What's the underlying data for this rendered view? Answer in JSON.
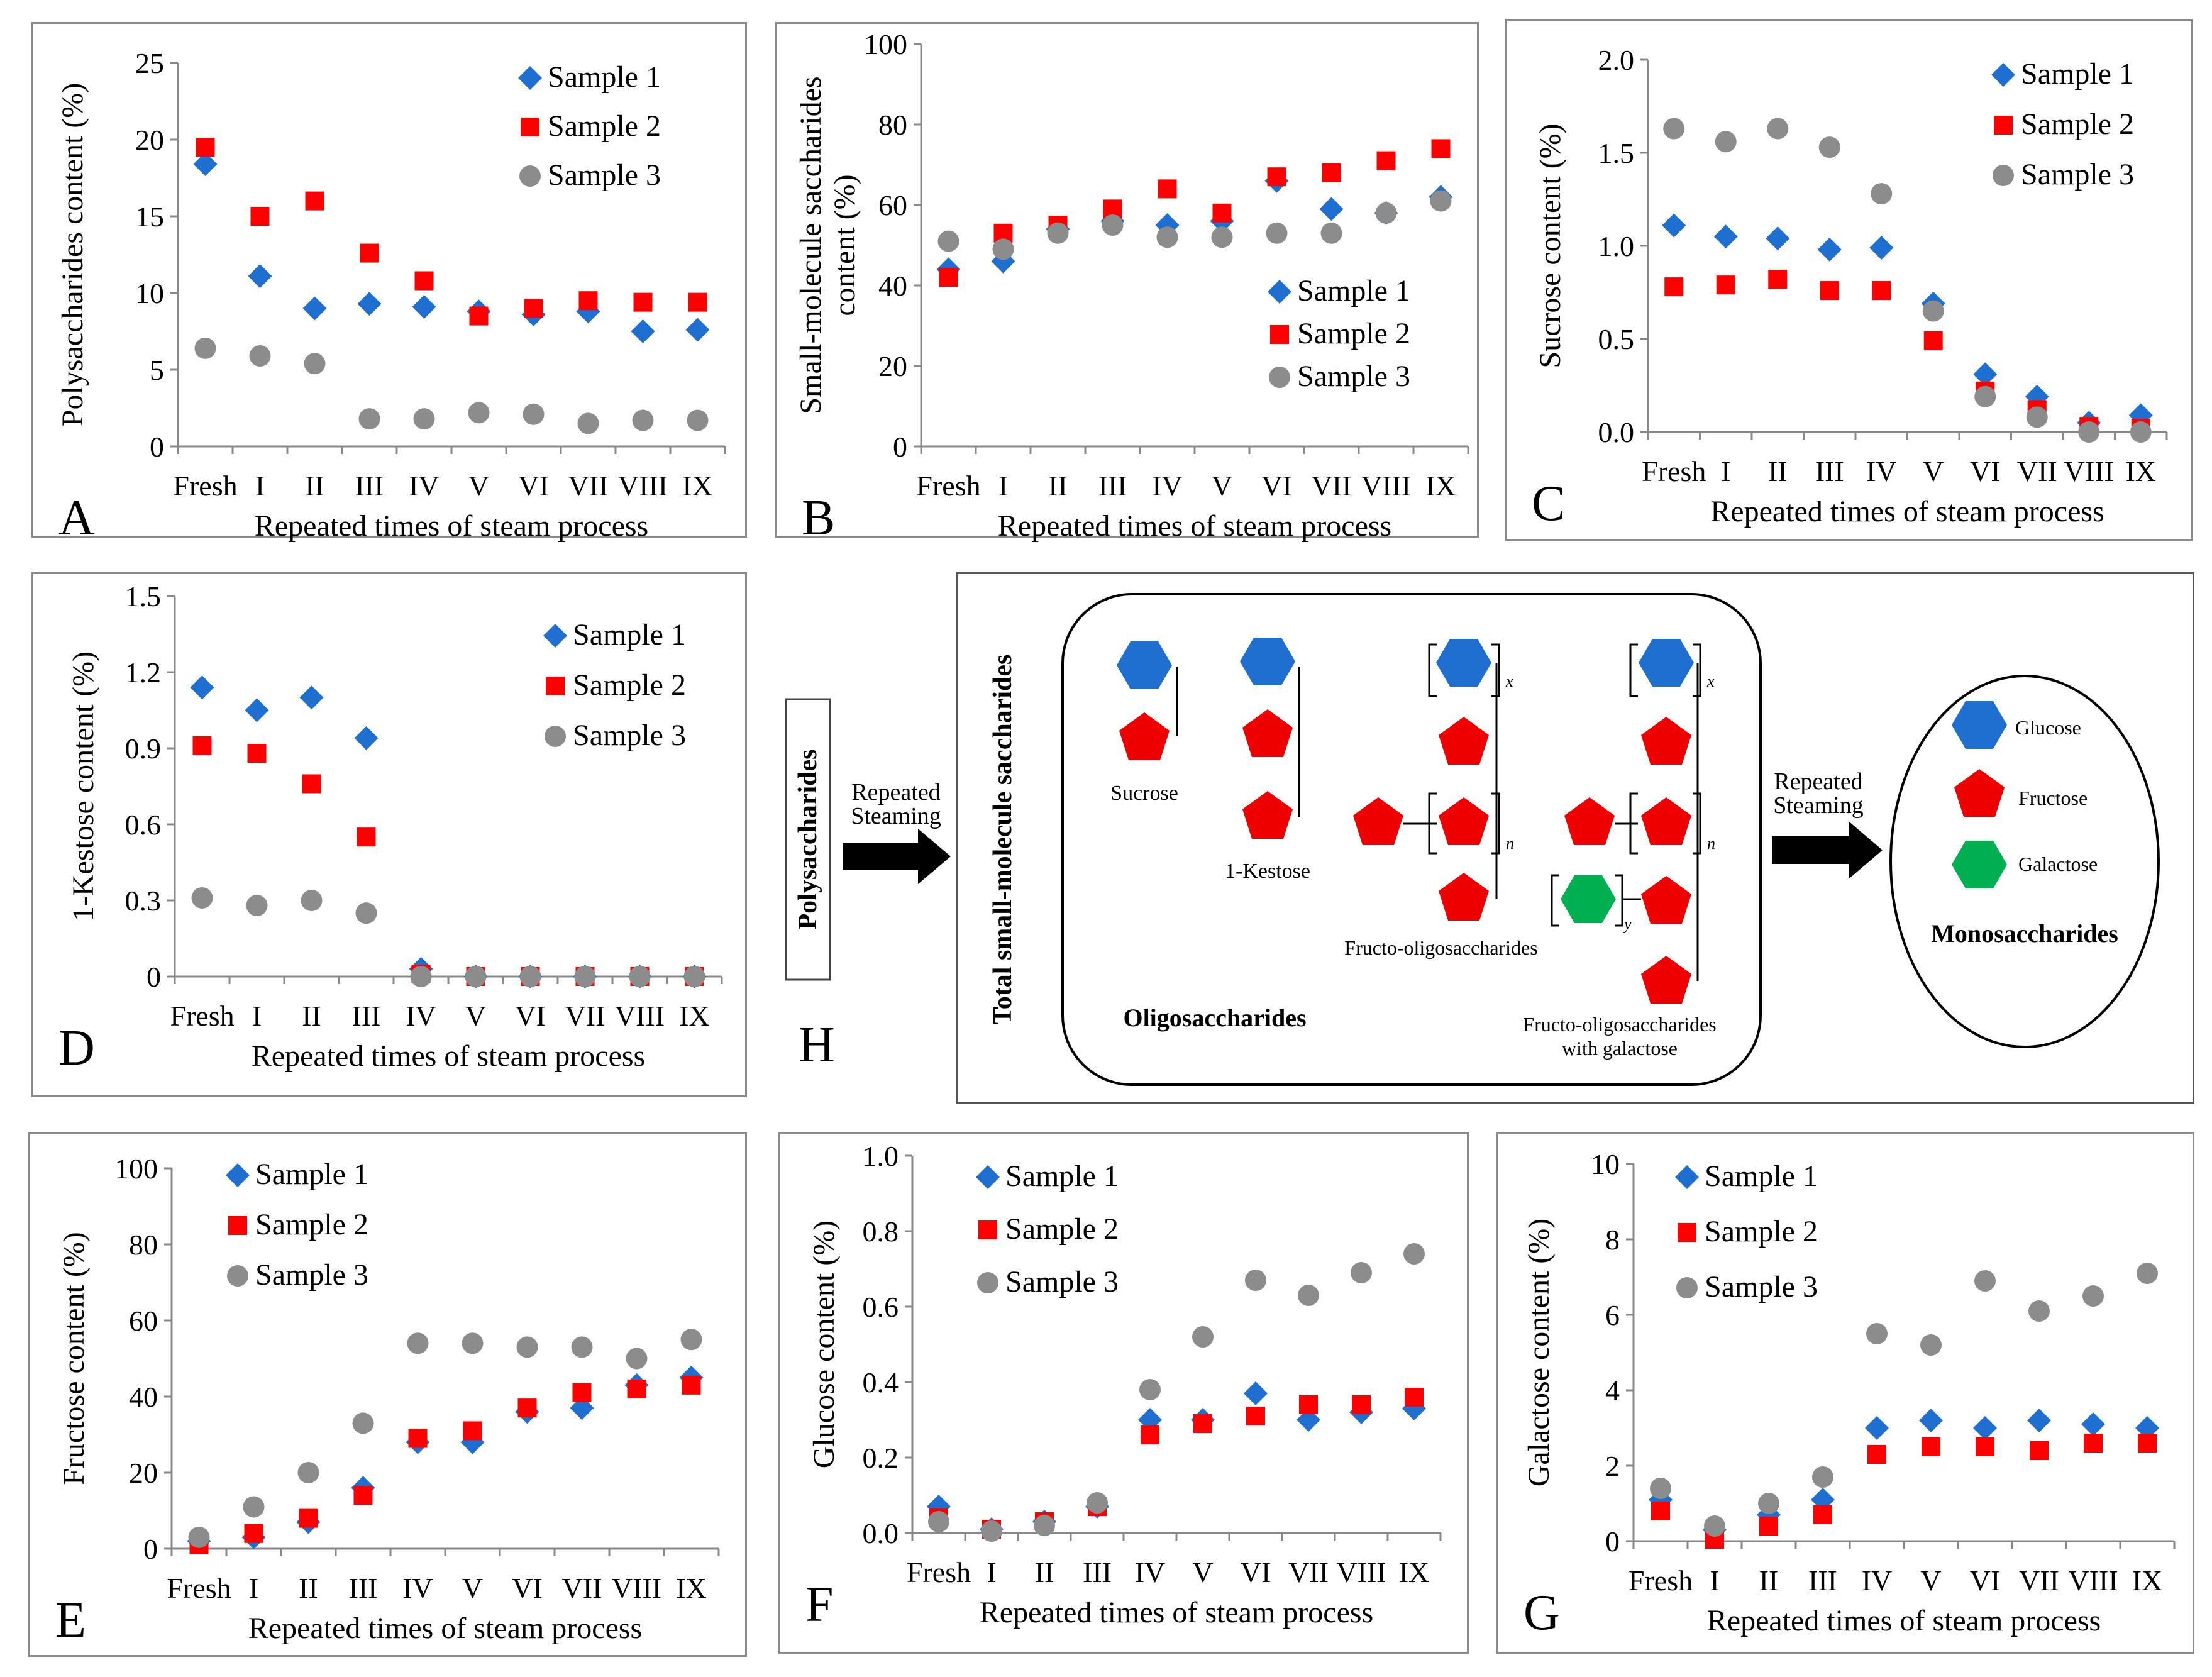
{
  "figure": {
    "categories": [
      "Fresh",
      "I",
      "II",
      "III",
      "IV",
      "V",
      "VI",
      "VII",
      "VIII",
      "IX"
    ],
    "xlabel": "Repeated times of steam process",
    "series_names": [
      "Sample 1",
      "Sample 2",
      "Sample 3"
    ],
    "colors": {
      "Sample 1": "#1f6fd1",
      "Sample 2": "#ff0000",
      "Sample 3": "#8c8c8c"
    }
  },
  "chart_data": [
    {
      "panel": "A",
      "type": "scatter",
      "ylabel": "Polysaccharides content (%)",
      "ylim": [
        0,
        25
      ],
      "yticks": [
        "0",
        "5",
        "10",
        "15",
        "20",
        "25"
      ],
      "series": [
        {
          "name": "Sample 1",
          "values": [
            18.4,
            11.1,
            9.0,
            9.3,
            9.1,
            8.8,
            8.6,
            8.8,
            7.5,
            7.6
          ]
        },
        {
          "name": "Sample 2",
          "values": [
            19.5,
            15.0,
            16.0,
            12.6,
            10.8,
            8.5,
            9.0,
            9.5,
            9.4,
            9.4
          ]
        },
        {
          "name": "Sample 3",
          "values": [
            6.4,
            5.9,
            5.4,
            1.8,
            1.8,
            2.2,
            2.1,
            1.5,
            1.7,
            1.7
          ]
        }
      ]
    },
    {
      "panel": "B",
      "type": "scatter",
      "ylabel": "Small-molecule saccharides content (%)",
      "ylabel_lines": [
        "Small-molecule saccharides",
        "content (%)"
      ],
      "ylim": [
        0,
        100
      ],
      "yticks": [
        "0",
        "20",
        "40",
        "60",
        "80",
        "100"
      ],
      "series": [
        {
          "name": "Sample 1",
          "values": [
            44,
            46,
            54,
            56,
            55,
            56,
            66,
            59,
            58,
            62
          ]
        },
        {
          "name": "Sample 2",
          "values": [
            42,
            53,
            55,
            59,
            64,
            58,
            67,
            68,
            71,
            74
          ]
        },
        {
          "name": "Sample 3",
          "values": [
            51,
            49,
            53,
            55,
            52,
            52,
            53,
            53,
            58,
            61
          ]
        }
      ]
    },
    {
      "panel": "C",
      "type": "scatter",
      "ylabel": "Sucrose content (%)",
      "ylim": [
        0,
        2
      ],
      "yticks": [
        "0.0",
        "0.5",
        "1.0",
        "1.5",
        "2.0"
      ],
      "series": [
        {
          "name": "Sample 1",
          "values": [
            1.11,
            1.05,
            1.04,
            0.98,
            0.99,
            0.69,
            0.31,
            0.19,
            0.05,
            0.09
          ]
        },
        {
          "name": "Sample 2",
          "values": [
            0.78,
            0.79,
            0.82,
            0.76,
            0.76,
            0.49,
            0.22,
            0.12,
            0.03,
            0.02
          ]
        },
        {
          "name": "Sample 3",
          "values": [
            1.63,
            1.56,
            1.63,
            1.53,
            1.28,
            0.65,
            0.19,
            0.08,
            0.0,
            0.0
          ]
        }
      ]
    },
    {
      "panel": "D",
      "type": "scatter",
      "ylabel": "1-Kestose content (%)",
      "ylim": [
        0,
        1.5
      ],
      "yticks": [
        "0",
        "0.3",
        "0.6",
        "0.9",
        "1.2",
        "1.5"
      ],
      "series": [
        {
          "name": "Sample 1",
          "values": [
            1.14,
            1.05,
            1.1,
            0.94,
            0.03,
            0,
            0,
            0,
            0,
            0
          ]
        },
        {
          "name": "Sample 2",
          "values": [
            0.91,
            0.88,
            0.76,
            0.55,
            0.01,
            0,
            0,
            0,
            0,
            0
          ]
        },
        {
          "name": "Sample 3",
          "values": [
            0.31,
            0.28,
            0.3,
            0.25,
            0.0,
            0,
            0,
            0,
            0,
            0
          ]
        }
      ]
    },
    {
      "panel": "E",
      "type": "scatter",
      "ylabel": "Fructose content (%)",
      "ylim": [
        0,
        100
      ],
      "yticks": [
        "0",
        "20",
        "40",
        "60",
        "80",
        "100"
      ],
      "series": [
        {
          "name": "Sample 1",
          "values": [
            2,
            3,
            7,
            16,
            28,
            28,
            36,
            37,
            43,
            45
          ]
        },
        {
          "name": "Sample 2",
          "values": [
            1,
            4,
            8,
            14,
            29,
            31,
            37,
            41,
            42,
            43
          ]
        },
        {
          "name": "Sample 3",
          "values": [
            3,
            11,
            20,
            33,
            54,
            54,
            53,
            53,
            50,
            55
          ]
        }
      ]
    },
    {
      "panel": "F",
      "type": "scatter",
      "ylabel": "Glucose content (%)",
      "ylim": [
        0,
        1
      ],
      "yticks": [
        "0.0",
        "0.2",
        "0.4",
        "0.6",
        "0.8",
        "1.0"
      ],
      "series": [
        {
          "name": "Sample 1",
          "values": [
            0.07,
            0.01,
            0.03,
            0.07,
            0.3,
            0.3,
            0.37,
            0.3,
            0.32,
            0.33
          ]
        },
        {
          "name": "Sample 2",
          "values": [
            0.04,
            0.01,
            0.03,
            0.07,
            0.26,
            0.29,
            0.31,
            0.34,
            0.34,
            0.36
          ]
        },
        {
          "name": "Sample 3",
          "values": [
            0.03,
            0.005,
            0.02,
            0.08,
            0.38,
            0.52,
            0.67,
            0.63,
            0.69,
            0.74
          ]
        }
      ]
    },
    {
      "panel": "G",
      "type": "scatter",
      "ylabel": "Galactose content (%)",
      "ylim": [
        0,
        10
      ],
      "yticks": [
        "0",
        "2",
        "4",
        "6",
        "8",
        "10"
      ],
      "series": [
        {
          "name": "Sample 1",
          "values": [
            1.1,
            0.3,
            0.7,
            1.1,
            3.0,
            3.2,
            3.0,
            3.2,
            3.1,
            3.0
          ]
        },
        {
          "name": "Sample 2",
          "values": [
            0.8,
            0.05,
            0.4,
            0.7,
            2.3,
            2.5,
            2.5,
            2.4,
            2.6,
            2.6
          ]
        },
        {
          "name": "Sample 3",
          "values": [
            1.4,
            0.4,
            1.0,
            1.7,
            5.5,
            5.2,
            6.9,
            6.1,
            6.5,
            7.1
          ]
        }
      ]
    }
  ],
  "diagram": {
    "panel": "H",
    "polysaccharides": "Polysaccharides",
    "arrow1_label": [
      "Repeated",
      "Steaming"
    ],
    "total_label": "Total small-molecule saccharides",
    "sucrose": "Sucrose",
    "kestose": "1-Kestose",
    "fos": "Fructo-oligosaccharides",
    "fos_gal": [
      "Fructo-oligosaccharides",
      "with  galactose"
    ],
    "oligo": "Oligosaccharides",
    "arrow2_label": [
      "Repeated",
      "Steaming"
    ],
    "glucose": "Glucose",
    "fructose": "Fructose",
    "galactose": "Galactose",
    "mono": "Monosaccharides",
    "sub_x": "x",
    "sub_n": "n",
    "sub_y": "y",
    "colors": {
      "glucose": "#1f6fd1",
      "fructose": "#ee0000",
      "galactose": "#00b050"
    }
  }
}
